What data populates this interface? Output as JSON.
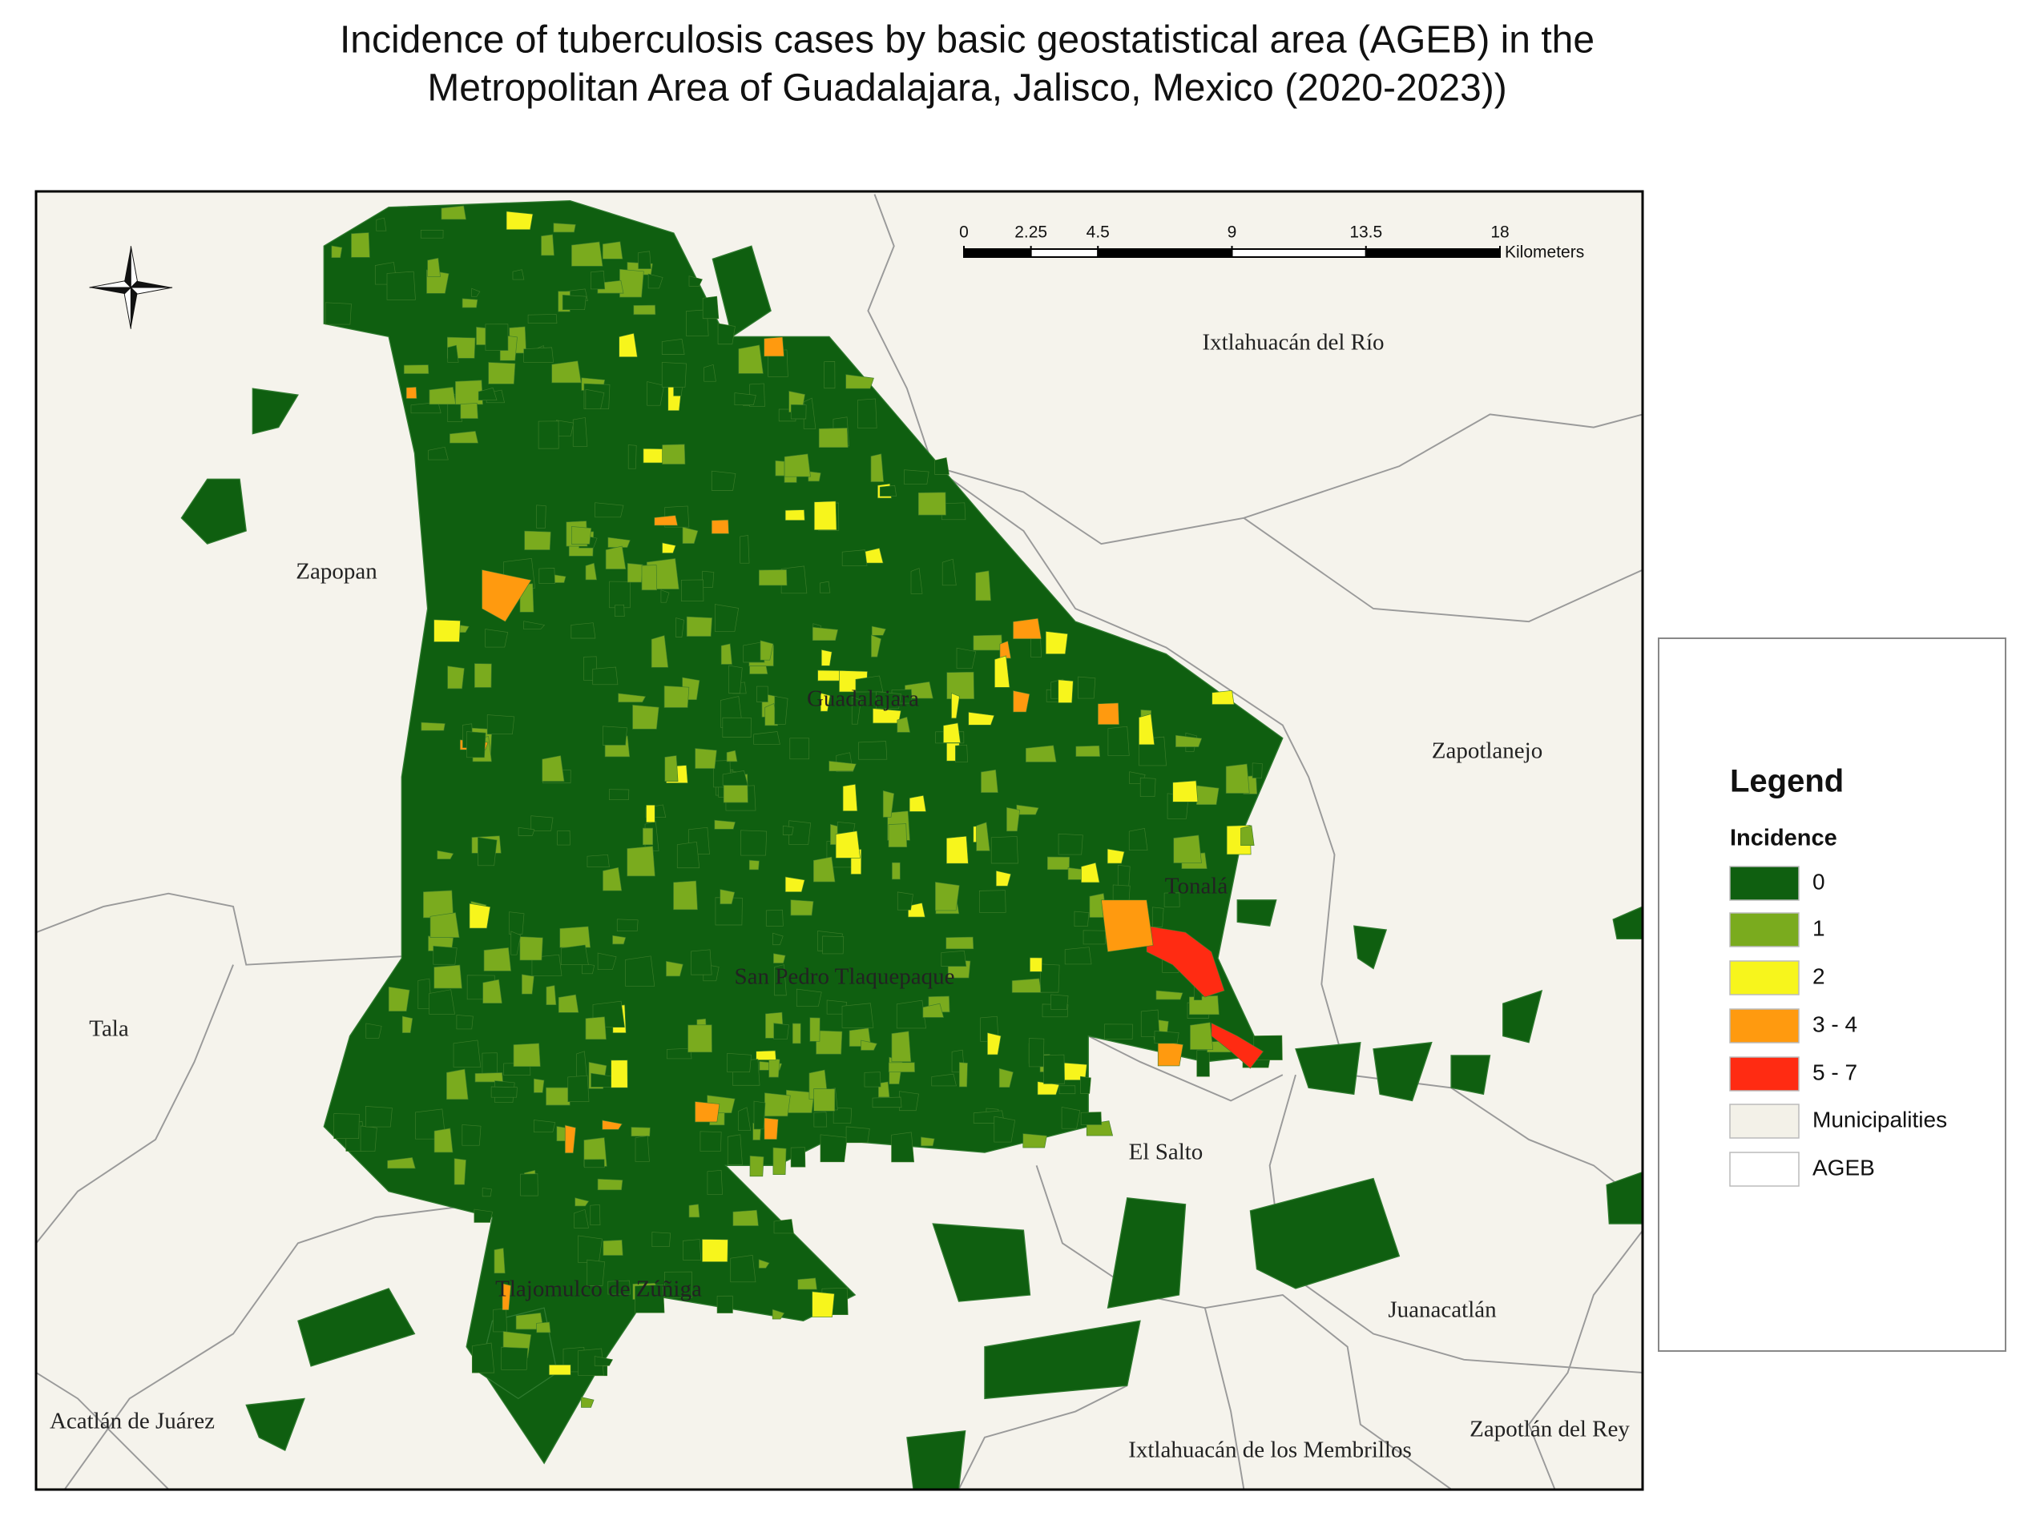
{
  "title": [
    "Incidence of tuberculosis cases by basic geostatistical area (AGEB) in the",
    "Metropolitan Area of Guadalajara, Jalisco, Mexico (2020-2023))"
  ],
  "scale_bar": {
    "ticks": [
      0,
      2.25,
      4.5,
      9,
      13.5,
      18
    ],
    "unit": "Kilometers"
  },
  "places": [
    "Ixtlahuacán del Río",
    "Zapopan",
    "Guadalajara",
    "Zapotlanejo",
    "Tonalá",
    "San Pedro Tlaquepaque",
    "Tala",
    "El Salto",
    "Tlajomulco de Zúñiga",
    "Juanacatlán",
    "Acatlán de Juárez",
    "Zapotlán del Rey",
    "Ixtlahuacán de los Membrillos"
  ],
  "legend": {
    "title": "Legend",
    "subtitle": "Incidence",
    "items": [
      {
        "label": "0",
        "color": "#0f5f10"
      },
      {
        "label": "1",
        "color": "#7aab1e"
      },
      {
        "label": "2",
        "color": "#f7f51c"
      },
      {
        "label": "3 - 4",
        "color": "#ff9a0f"
      },
      {
        "label": "5 - 7",
        "color": "#ff2b12"
      },
      {
        "label": "Municipalities",
        "color": "#f3f1e8"
      },
      {
        "label": "AGEB",
        "color": "#ffffff"
      }
    ]
  }
}
